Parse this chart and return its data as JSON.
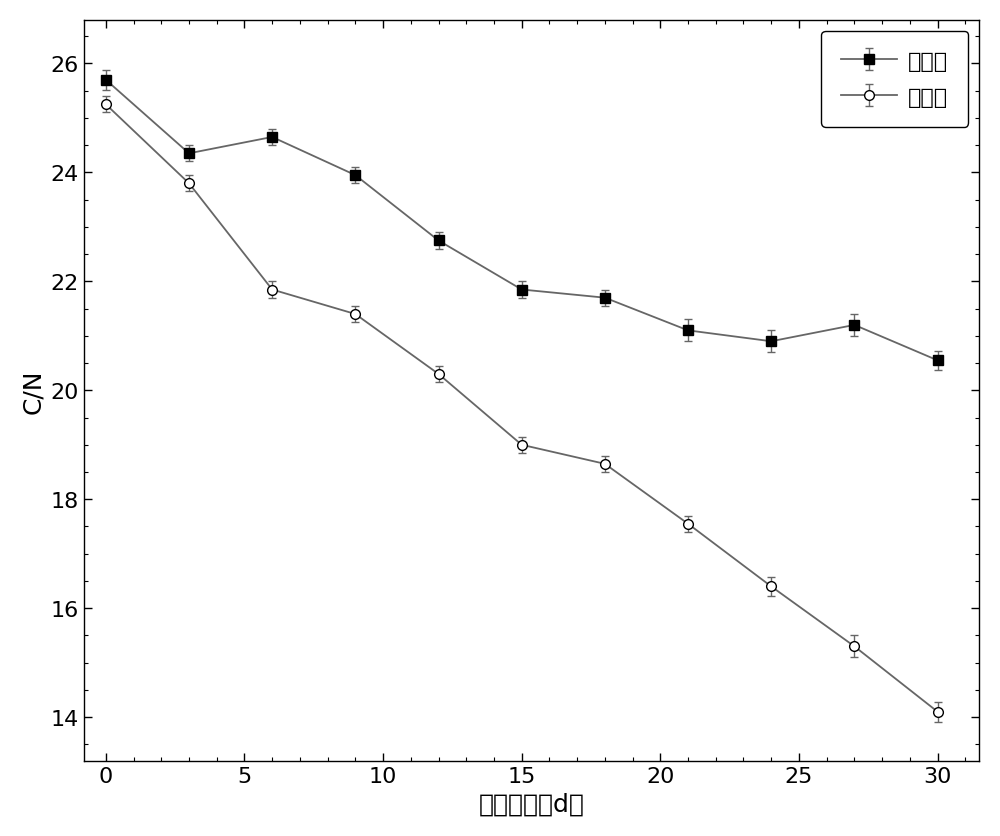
{
  "x": [
    0,
    3,
    6,
    9,
    12,
    15,
    18,
    21,
    24,
    27,
    30
  ],
  "control_y": [
    25.7,
    24.35,
    24.65,
    23.95,
    22.75,
    21.85,
    21.7,
    21.1,
    20.9,
    21.2,
    20.55
  ],
  "control_yerr": [
    0.18,
    0.15,
    0.15,
    0.15,
    0.15,
    0.15,
    0.15,
    0.2,
    0.2,
    0.2,
    0.18
  ],
  "exp_y": [
    25.25,
    23.8,
    21.85,
    21.4,
    20.3,
    19.0,
    18.65,
    17.55,
    16.4,
    15.3,
    14.1
  ],
  "exp_yerr": [
    0.15,
    0.15,
    0.15,
    0.15,
    0.15,
    0.15,
    0.15,
    0.15,
    0.18,
    0.2,
    0.18
  ],
  "xlabel": "堆肌时间（d）",
  "ylabel": "C/N",
  "xlim": [
    -0.8,
    31.5
  ],
  "ylim": [
    13.2,
    26.8
  ],
  "yticks": [
    14,
    16,
    18,
    20,
    22,
    24,
    26
  ],
  "xticks": [
    0,
    5,
    10,
    15,
    20,
    25,
    30
  ],
  "legend_control": "对照组",
  "legend_exp": "实验组",
  "line_color": "#666666",
  "marker_color": "#000000",
  "figsize": [
    10.0,
    8.37
  ],
  "dpi": 100
}
